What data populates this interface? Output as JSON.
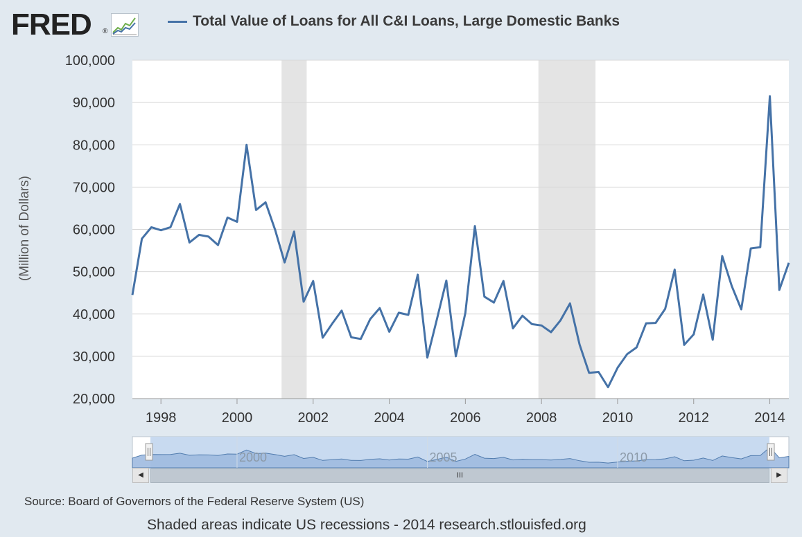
{
  "header": {
    "logo": "FRED",
    "logo_mark": "®",
    "legend_label": "Total Value of Loans for All C&I Loans, Large Domestic Banks"
  },
  "colors": {
    "series": "#4572a7",
    "recession": "#e4e4e4",
    "plot_bg": "#ffffff",
    "page_bg": "#e1e9f0",
    "navigator_fill": "#9fbbe0",
    "navigator_window": "#c8daf0"
  },
  "chart_data": {
    "type": "line",
    "ylabel": "(Million of Dollars)",
    "ylim": [
      20000,
      100000
    ],
    "yticks": [
      20000,
      30000,
      40000,
      50000,
      60000,
      70000,
      80000,
      90000,
      100000
    ],
    "ytick_labels": [
      "20,000",
      "30,000",
      "40,000",
      "50,000",
      "60,000",
      "70,000",
      "80,000",
      "90,000",
      "100,000"
    ],
    "xlim": [
      1997.25,
      2014.5
    ],
    "xticks": [
      1998,
      2000,
      2002,
      2004,
      2006,
      2008,
      2010,
      2012,
      2014
    ],
    "xtick_labels": [
      "1998",
      "2000",
      "2002",
      "2004",
      "2006",
      "2008",
      "2010",
      "2012",
      "2014"
    ],
    "grid": true,
    "legend": "top",
    "recessions": [
      [
        2001.17,
        2001.83
      ],
      [
        2007.92,
        2009.42
      ]
    ],
    "series": [
      {
        "name": "Total Value of Loans for All C&I Loans, Large Domestic Banks",
        "x": [
          1997.25,
          1997.5,
          1997.75,
          1998.0,
          1998.25,
          1998.5,
          1998.75,
          1999.0,
          1999.25,
          1999.5,
          1999.75,
          2000.0,
          2000.25,
          2000.5,
          2000.75,
          2001.0,
          2001.25,
          2001.5,
          2001.75,
          2002.0,
          2002.25,
          2002.5,
          2002.75,
          2003.0,
          2003.25,
          2003.5,
          2003.75,
          2004.0,
          2004.25,
          2004.5,
          2004.75,
          2005.0,
          2005.25,
          2005.5,
          2005.75,
          2006.0,
          2006.25,
          2006.5,
          2006.75,
          2007.0,
          2007.25,
          2007.5,
          2007.75,
          2008.0,
          2008.25,
          2008.5,
          2008.75,
          2009.0,
          2009.25,
          2009.5,
          2009.75,
          2010.0,
          2010.25,
          2010.5,
          2010.75,
          2011.0,
          2011.25,
          2011.5,
          2011.75,
          2012.0,
          2012.25,
          2012.5,
          2012.75,
          2013.0,
          2013.25,
          2013.5,
          2013.75,
          2014.0,
          2014.25,
          2014.5
        ],
        "values": [
          44500,
          57800,
          60500,
          59800,
          60500,
          66000,
          56900,
          58700,
          58300,
          56300,
          62800,
          61800,
          80000,
          64600,
          66400,
          59900,
          52200,
          59500,
          42900,
          47800,
          34400,
          37700,
          40800,
          34500,
          34100,
          38800,
          41400,
          35800,
          40300,
          39800,
          49300,
          29700,
          38700,
          47900,
          30000,
          40300,
          60800,
          44100,
          42700,
          47800,
          36600,
          39600,
          37600,
          37300,
          35700,
          38500,
          42500,
          32800,
          26100,
          26300,
          22700,
          27300,
          30500,
          32100,
          37800,
          37900,
          41200,
          50500,
          32700,
          35200,
          44600,
          33900,
          53700,
          46600,
          41100,
          55500,
          55800,
          91500,
          45700,
          52100
        ]
      }
    ]
  },
  "navigator": {
    "labels": [
      "2000",
      "2005",
      "2010"
    ],
    "label_years": [
      2000,
      2005,
      2010
    ],
    "scroll_grip": "III",
    "left_arrow": "◀",
    "right_arrow": "▶"
  },
  "source": "Source: Board of Governors of the Federal Reserve System (US)",
  "footer": "Shaded areas indicate US recessions - 2014 research.stlouisfed.org"
}
